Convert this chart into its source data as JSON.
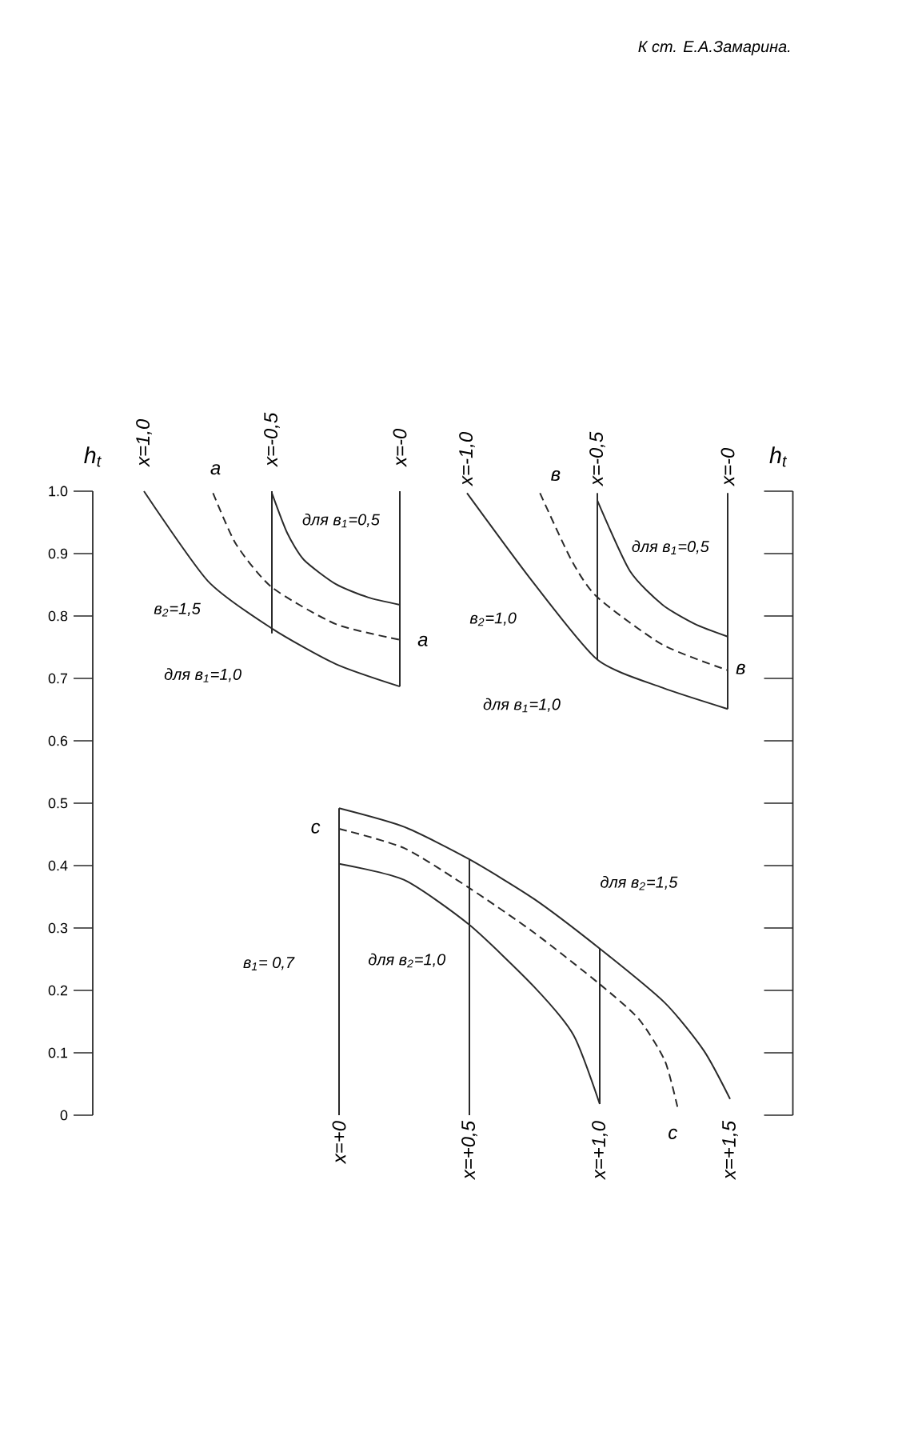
{
  "chart_data": [
    {
      "type": "line",
      "ylabel": "h$_{t}$",
      "xlim": [
        -1.2,
        0
      ],
      "ylim": [
        0,
        1
      ],
      "xticks": [
        {
          "value": -1,
          "label": "x=1,0"
        },
        {
          "value": -0.5,
          "label": "x=-0,5"
        },
        {
          "value": 0,
          "label": "x=-0"
        }
      ],
      "yticks": [
        0,
        0.1,
        0.2,
        0.3,
        0.4,
        0.5,
        0.6,
        0.7,
        0.8,
        0.9,
        {
          "value": 1,
          "label": "1.0"
        }
      ],
      "marker": "none",
      "series": [
        {
          "color": "#2a2a2a",
          "line_style": "solid",
          "x": [
            -1,
            -0.75,
            -0.5,
            -0.25,
            0
          ],
          "values": [
            1.0,
            0.856,
            0.78,
            0.723,
            0.687
          ]
        },
        {
          "color": "#2a2a2a",
          "line_style": "dashed",
          "x": [
            -0.73,
            -0.64,
            -0.5,
            -0.25,
            0
          ],
          "values": [
            0.997,
            0.915,
            0.846,
            0.787,
            0.762
          ]
        },
        {
          "color": "#2a2a2a",
          "line_style": "solid",
          "x": [
            -0.5,
            -0.44,
            -0.375,
            -0.25,
            -0.125,
            0
          ],
          "values": [
            0.997,
            0.933,
            0.89,
            0.851,
            0.83,
            0.818
          ]
        },
        {
          "color": "#2a2a2a",
          "line_style": "solid",
          "x": [
            -0.5,
            -0.5
          ],
          "values": [
            1.0,
            0.772
          ]
        },
        {
          "color": "#2a2a2a",
          "line_style": "solid",
          "x": [
            0,
            0
          ],
          "values": [
            1.0,
            0.687
          ]
        }
      ],
      "annotations": [
        "а",
        "а",
        "для в$_{1}$=0,5",
        "в$_{2}$=1,5",
        "для в$_{1}$=1,0"
      ]
    },
    {
      "type": "line",
      "ylabel": "h$_{t}$",
      "xlim": [
        -1,
        0.25
      ],
      "ylim": [
        0,
        1
      ],
      "tick_labels": "x",
      "xticks": [
        {
          "value": -1,
          "label": "x=-1,0"
        },
        {
          "value": -0.5,
          "label": "x=-0,5"
        },
        {
          "value": 0,
          "label": "x=-0"
        }
      ],
      "yticks": [
        {
          "value": 0,
          "label": null
        },
        {
          "value": 0.1,
          "label": null
        },
        {
          "value": 0.2,
          "label": null
        },
        {
          "value": 0.3,
          "label": null
        },
        {
          "value": 0.4,
          "label": null
        },
        {
          "value": 0.5,
          "label": null
        },
        {
          "value": 0.6,
          "label": null
        },
        {
          "value": 0.7,
          "label": null
        },
        {
          "value": 0.8,
          "label": null
        },
        {
          "value": 0.9,
          "label": null
        },
        {
          "value": 1,
          "label": null
        }
      ],
      "marker": "none",
      "series": [
        {
          "color": "#2a2a2a",
          "line_style": "solid",
          "x": [
            -1,
            -0.75,
            -0.5,
            -0.25,
            0
          ],
          "values": [
            0.997,
            0.856,
            0.73,
            0.685,
            0.651
          ]
        },
        {
          "color": "#2a2a2a",
          "line_style": "dashed",
          "x": [
            -0.72,
            -0.6,
            -0.5,
            -0.25,
            0
          ],
          "values": [
            0.997,
            0.89,
            0.83,
            0.754,
            0.713
          ]
        },
        {
          "color": "#2a2a2a",
          "line_style": "solid",
          "x": [
            -0.5,
            -0.375,
            -0.25,
            -0.125,
            0
          ],
          "values": [
            0.985,
            0.872,
            0.818,
            0.787,
            0.767
          ]
        },
        {
          "color": "#2a2a2a",
          "line_style": "solid",
          "x": [
            -0.5,
            -0.5
          ],
          "values": [
            0.997,
            0.73
          ]
        },
        {
          "color": "#2a2a2a",
          "line_style": "solid",
          "x": [
            0,
            0
          ],
          "values": [
            0.997,
            0.651
          ]
        }
      ],
      "annotations": [
        "в",
        "в",
        "для в$_{1}$=0,5",
        "в$_{2}$=1,0",
        "для в$_{1}$=1,0",
        "К ст. Е.А.Замарина."
      ]
    },
    {
      "type": "line",
      "xlim": [
        0,
        1.5
      ],
      "ylim": [
        0,
        1
      ],
      "tick_labels": "x",
      "xticks": [
        {
          "value": 0,
          "label": "x=+0"
        },
        {
          "value": 0.5,
          "label": "x=+0,5"
        },
        {
          "value": 1,
          "label": "x=+1,0"
        },
        {
          "value": 1.5,
          "label": "x=+1,5"
        }
      ],
      "marker": "none",
      "series": [
        {
          "color": "#2a2a2a",
          "line_style": "solid",
          "x": [
            0,
            0.25,
            0.5,
            0.75,
            1,
            1.25,
            1.4,
            1.5
          ],
          "values": [
            0.492,
            0.462,
            0.41,
            0.346,
            0.267,
            0.18,
            0.103,
            0.026
          ]
        },
        {
          "color": "#2a2a2a",
          "line_style": "dashed",
          "x": [
            0,
            0.25,
            0.5,
            0.75,
            1,
            1.15,
            1.25,
            1.3
          ],
          "values": [
            0.459,
            0.428,
            0.364,
            0.292,
            0.21,
            0.154,
            0.087,
            0.01
          ]
        },
        {
          "color": "#2a2a2a",
          "line_style": "solid",
          "x": [
            0,
            0.25,
            0.5,
            0.75,
            0.9,
            1.0
          ],
          "values": [
            0.403,
            0.377,
            0.305,
            0.205,
            0.128,
            0.018
          ]
        },
        {
          "color": "#2a2a2a",
          "line_style": "solid",
          "x": [
            0,
            0
          ],
          "values": [
            0.492,
            0
          ]
        },
        {
          "color": "#2a2a2a",
          "line_style": "solid",
          "x": [
            0.5,
            0.5
          ],
          "values": [
            0.41,
            0
          ]
        },
        {
          "color": "#2a2a2a",
          "line_style": "solid",
          "x": [
            1,
            1
          ],
          "values": [
            0.267,
            0.018
          ]
        }
      ],
      "annotations": [
        "с",
        "с",
        "для в$_{2}$=1,5",
        "в$_{1}$= 0,7",
        "для в$_{2}$=1,0"
      ]
    }
  ]
}
